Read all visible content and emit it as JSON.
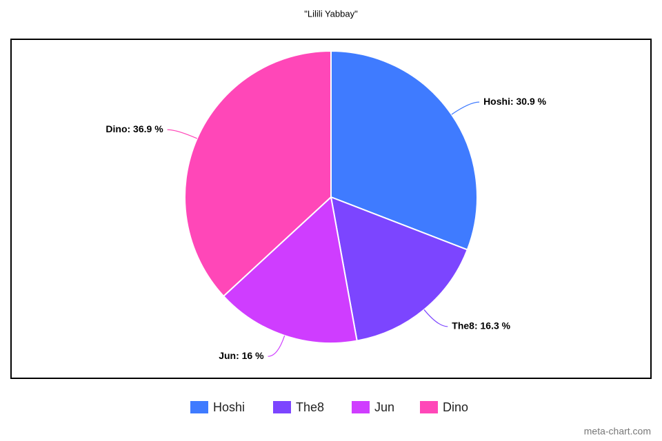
{
  "chart_data": {
    "type": "pie",
    "title": "\"Lilili Yabbay\"",
    "categories": [
      "Hoshi",
      "The8",
      "Jun",
      "Dino"
    ],
    "values": [
      30.9,
      16.3,
      16,
      36.9
    ],
    "value_labels": [
      "Hoshi: 30.9 %",
      "The8: 16.3 %",
      "Jun: 16 %",
      "Dino: 36.9 %"
    ],
    "colors": [
      "#3f7bff",
      "#7c45ff",
      "#cf3dff",
      "#ff47b8"
    ],
    "legend": "bottom",
    "watermark": "meta-chart.com"
  }
}
